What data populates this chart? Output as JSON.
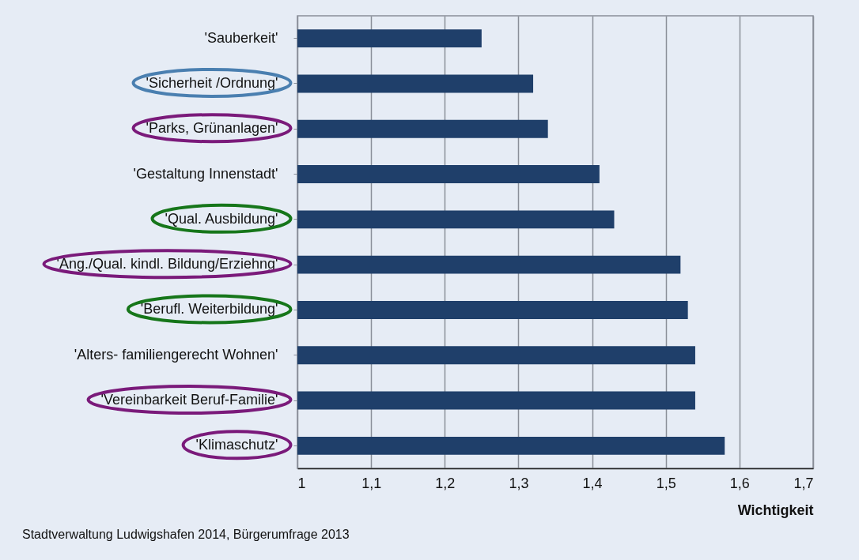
{
  "chart_data": {
    "type": "bar",
    "orientation": "horizontal",
    "xlabel": "Wichtigkeit",
    "categories": [
      "'Sauberkeit'",
      "'Sicherheit /Ordnung'",
      "'Parks, Grünanlagen'",
      "'Gestaltung Innenstadt'",
      "'Qual. Ausbildung'",
      "'Ang./Qual. kindl. Bildung/Erziehng'",
      "'Berufl. Weiterbildung'",
      "'Alters- familiengerecht Wohnen'",
      "'Vereinbarkeit Beruf-Familie'",
      "'Klimaschutz'"
    ],
    "values": [
      1.25,
      1.32,
      1.34,
      1.41,
      1.43,
      1.52,
      1.53,
      1.54,
      1.54,
      1.58
    ],
    "color": "#1f3f6a",
    "xlim": [
      1,
      1.7
    ],
    "xticks": [
      1,
      {
        "value": 1.1,
        "label": "1,1"
      },
      {
        "value": 1.2,
        "label": "1,2"
      },
      {
        "value": 1.3,
        "label": "1,3"
      },
      {
        "value": 1.4,
        "label": "1,4"
      },
      {
        "value": 1.5,
        "label": "1,5"
      },
      {
        "value": 1.6,
        "label": "1,6"
      },
      {
        "value": 1.7,
        "label": "1,7"
      }
    ],
    "grid": "x",
    "legend": false,
    "annotations": [
      "Stadtverwaltung Ludwigshafen 2014, Bürgerumfrage 2013"
    ]
  }
}
